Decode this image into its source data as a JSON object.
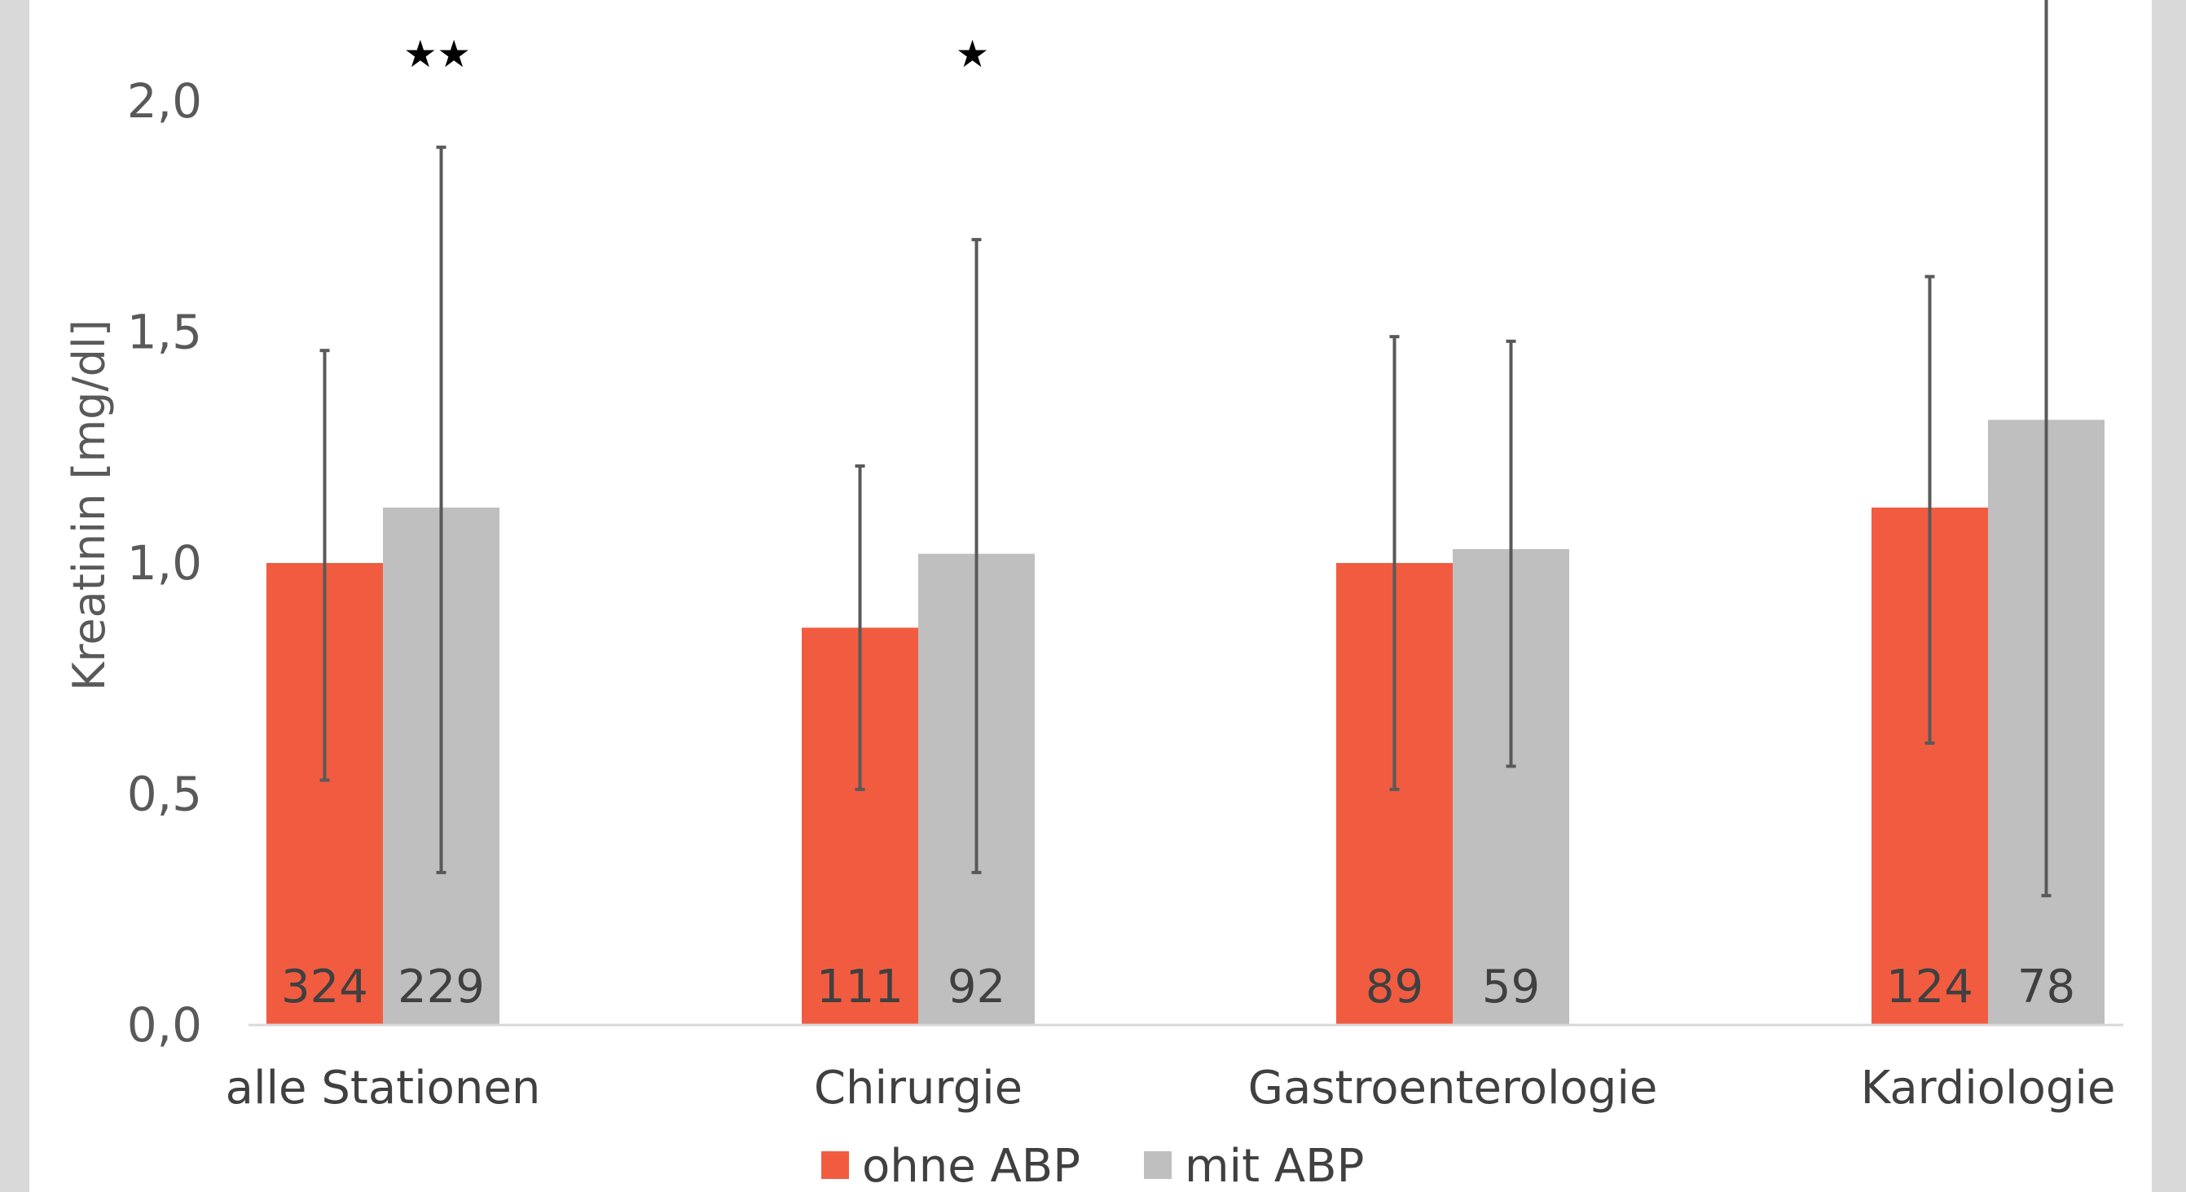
{
  "chart_data": {
    "type": "bar",
    "ylabel": "Kreatinin [mg/dl]",
    "ylim": [
      0,
      2.0
    ],
    "yticks": [
      "0,0",
      "0,5",
      "1,0",
      "1,5",
      "2,0"
    ],
    "categories": [
      "alle Stationen",
      "Chirurgie",
      "Gastroenterologie",
      "Kardiologie"
    ],
    "series": [
      {
        "name": "ohne ABP",
        "color": "#f15c41",
        "values": [
          1.0,
          0.86,
          1.0,
          1.12
        ],
        "error_low": [
          0.53,
          0.51,
          0.51,
          0.61
        ],
        "error_high": [
          1.46,
          1.21,
          1.49,
          1.62
        ],
        "n_labels": [
          "324",
          "111",
          "89",
          "124"
        ]
      },
      {
        "name": "mit ABP",
        "color": "#bfbfbf",
        "values": [
          1.12,
          1.02,
          1.03,
          1.31
        ],
        "error_low": [
          0.33,
          0.33,
          0.56,
          0.28
        ],
        "error_high": [
          1.9,
          1.7,
          1.48,
          2.25
        ],
        "n_labels": [
          "229",
          "92",
          "59",
          "78"
        ]
      }
    ],
    "significance": [
      "★★",
      "★",
      "",
      ""
    ],
    "legend": {
      "position": "bottom"
    },
    "grid": false
  }
}
